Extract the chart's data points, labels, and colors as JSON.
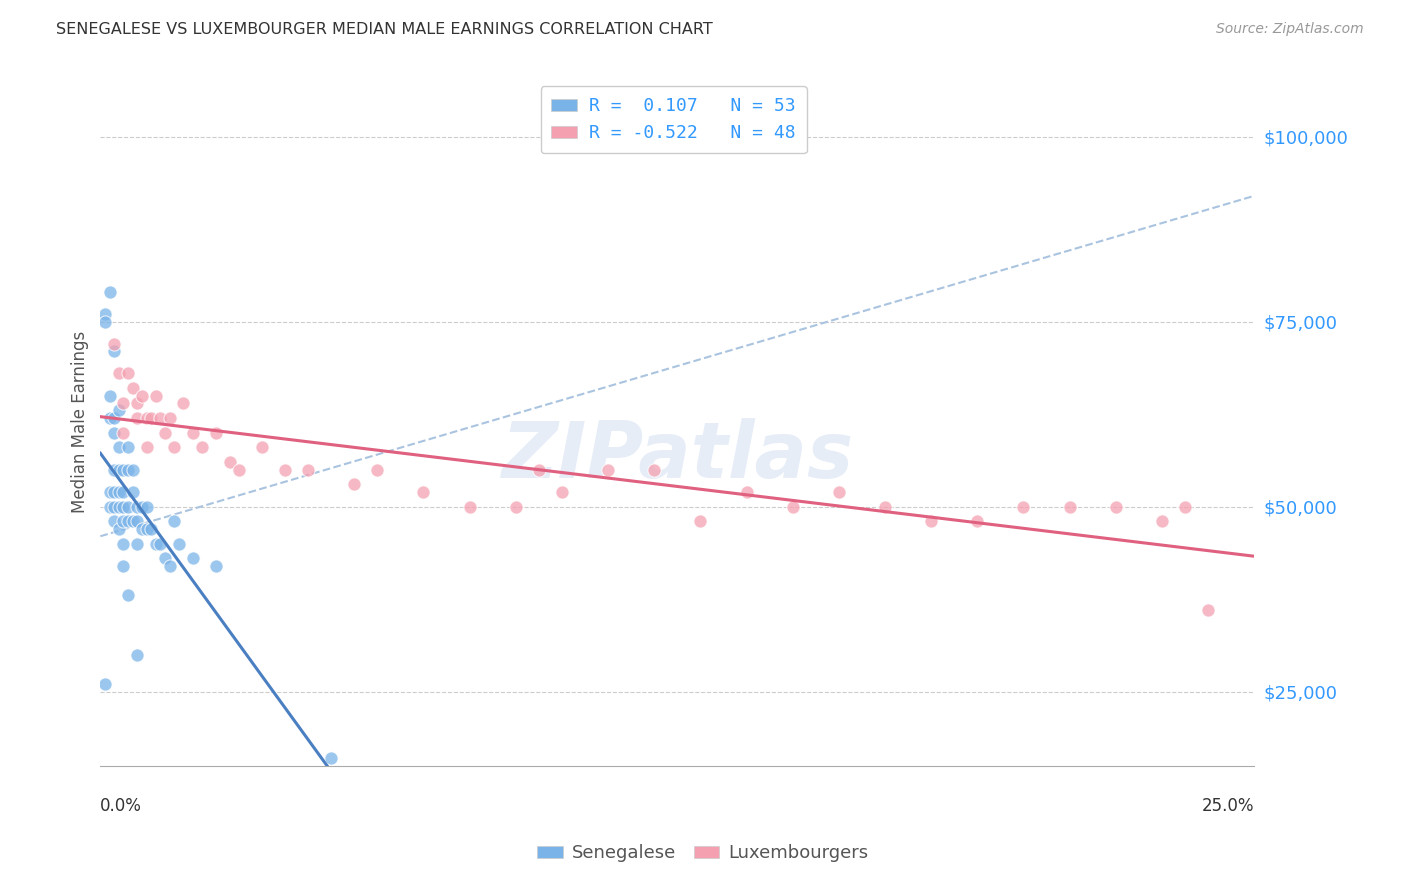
{
  "title": "SENEGALESE VS LUXEMBOURGER MEDIAN MALE EARNINGS CORRELATION CHART",
  "source": "Source: ZipAtlas.com",
  "ylabel": "Median Male Earnings",
  "y_ticks": [
    25000,
    50000,
    75000,
    100000
  ],
  "y_tick_labels": [
    "$25,000",
    "$50,000",
    "$75,000",
    "$100,000"
  ],
  "xlim": [
    0.0,
    0.25
  ],
  "ylim": [
    15000,
    108000
  ],
  "background_color": "#ffffff",
  "watermark": "ZIPatlas",
  "senegalese_color": "#7ab3e8",
  "luxembourger_color": "#f4a0b0",
  "trend_blue_color": "#4a7fc1",
  "trend_pink_color": "#e06080",
  "trend_dash_color": "#aac4e0",
  "sen_R": 0.107,
  "lux_R": -0.522,
  "sen_N": 53,
  "lux_N": 48,
  "senegalese_x": [
    0.001,
    0.001,
    0.001,
    0.002,
    0.002,
    0.002,
    0.002,
    0.003,
    0.003,
    0.003,
    0.003,
    0.003,
    0.003,
    0.004,
    0.004,
    0.004,
    0.004,
    0.004,
    0.005,
    0.005,
    0.005,
    0.005,
    0.005,
    0.006,
    0.006,
    0.006,
    0.006,
    0.007,
    0.007,
    0.007,
    0.008,
    0.008,
    0.008,
    0.009,
    0.009,
    0.01,
    0.01,
    0.011,
    0.012,
    0.013,
    0.014,
    0.015,
    0.016,
    0.017,
    0.02,
    0.025,
    0.002,
    0.003,
    0.004,
    0.005,
    0.006,
    0.008,
    0.05
  ],
  "senegalese_y": [
    76000,
    75000,
    26000,
    65000,
    62000,
    52000,
    50000,
    62000,
    60000,
    55000,
    52000,
    50000,
    48000,
    58000,
    55000,
    52000,
    50000,
    47000,
    55000,
    52000,
    50000,
    48000,
    45000,
    58000,
    55000,
    50000,
    48000,
    55000,
    52000,
    48000,
    50000,
    48000,
    45000,
    50000,
    47000,
    50000,
    47000,
    47000,
    45000,
    45000,
    43000,
    42000,
    48000,
    45000,
    43000,
    42000,
    79000,
    71000,
    63000,
    42000,
    38000,
    30000,
    16000
  ],
  "luxembourger_x": [
    0.003,
    0.004,
    0.005,
    0.005,
    0.006,
    0.007,
    0.008,
    0.008,
    0.009,
    0.01,
    0.01,
    0.011,
    0.012,
    0.013,
    0.014,
    0.015,
    0.016,
    0.018,
    0.02,
    0.022,
    0.025,
    0.028,
    0.03,
    0.035,
    0.04,
    0.045,
    0.055,
    0.06,
    0.07,
    0.08,
    0.09,
    0.095,
    0.1,
    0.11,
    0.12,
    0.13,
    0.14,
    0.15,
    0.16,
    0.17,
    0.18,
    0.19,
    0.2,
    0.21,
    0.22,
    0.23,
    0.235,
    0.24
  ],
  "luxembourger_y": [
    72000,
    68000,
    64000,
    60000,
    68000,
    66000,
    64000,
    62000,
    65000,
    62000,
    58000,
    62000,
    65000,
    62000,
    60000,
    62000,
    58000,
    64000,
    60000,
    58000,
    60000,
    56000,
    55000,
    58000,
    55000,
    55000,
    53000,
    55000,
    52000,
    50000,
    50000,
    55000,
    52000,
    55000,
    55000,
    48000,
    52000,
    50000,
    52000,
    50000,
    48000,
    48000,
    50000,
    50000,
    50000,
    48000,
    50000,
    36000
  ],
  "dashed_line_x0": 0.0,
  "dashed_line_y0": 46000,
  "dashed_line_x1": 0.25,
  "dashed_line_y1": 92000
}
